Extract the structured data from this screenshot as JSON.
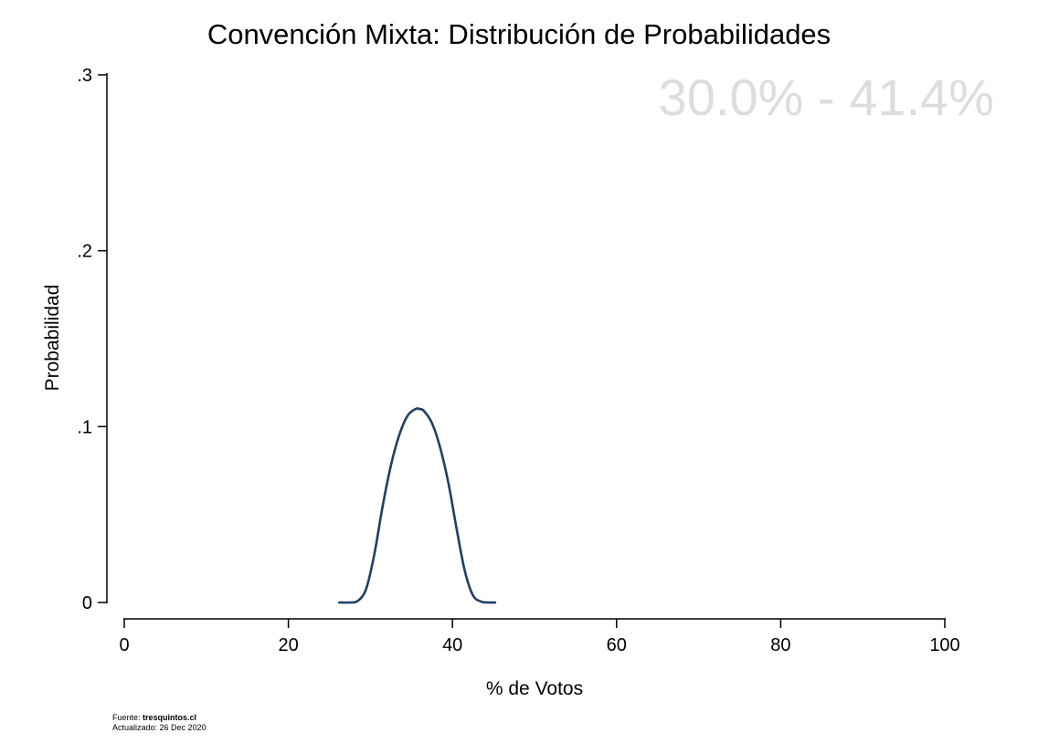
{
  "chart_data": {
    "type": "line",
    "title": "Convención Mixta: Distribución de Probabilidades",
    "range_label": "30.0% - 41.4%",
    "xlabel": "% de Votos",
    "ylabel": "Probabilidad",
    "xlim": [
      0,
      100
    ],
    "ylim": [
      0,
      0.3
    ],
    "x_ticks": [
      0,
      20,
      40,
      60,
      80,
      100
    ],
    "x_tick_labels": [
      "0",
      "20",
      "40",
      "60",
      "80",
      "100"
    ],
    "y_ticks": [
      0,
      0.1,
      0.2,
      0.3
    ],
    "y_tick_labels": [
      "0",
      ".1",
      ".2",
      ".3"
    ],
    "grid": false,
    "line_color": "#1f3f66",
    "range_color": "#dddddd",
    "series": [
      {
        "x": [
          26.2,
          27.5,
          28.5,
          29.5,
          30.5,
          31.5,
          32.5,
          33.5,
          34.5,
          35.5,
          36.0,
          36.5,
          37.5,
          38.5,
          39.5,
          40.5,
          41.5,
          42.5,
          43.5,
          44.2,
          45.2
        ],
        "y": [
          0.0,
          0.0,
          0.001,
          0.008,
          0.028,
          0.055,
          0.078,
          0.095,
          0.106,
          0.11,
          0.11,
          0.109,
          0.102,
          0.088,
          0.068,
          0.042,
          0.018,
          0.004,
          0.0005,
          0.0,
          0.0
        ]
      }
    ]
  },
  "footer": {
    "source_prefix": "Fuente: ",
    "source_site": "tresquintos.cl",
    "updated": "Actualizado: 26 Dec 2020"
  }
}
